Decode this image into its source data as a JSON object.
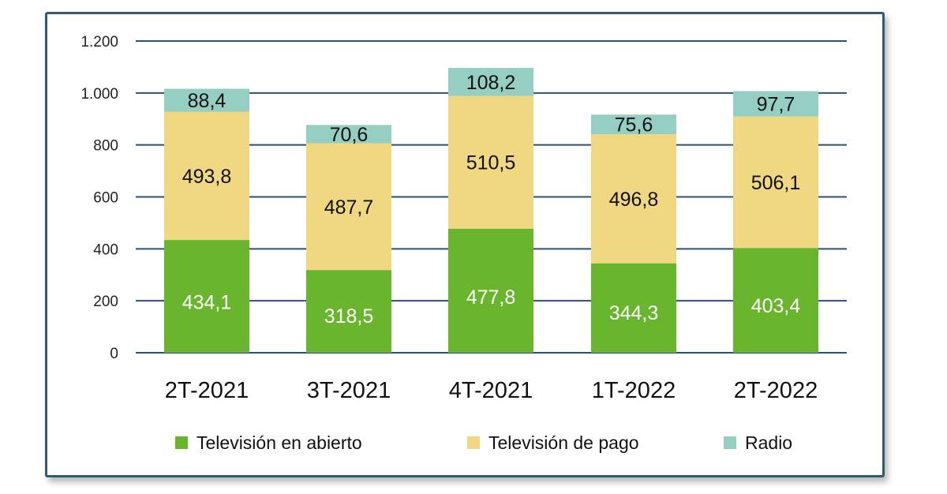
{
  "chart_data": {
    "type": "bar",
    "stacked": true,
    "categories": [
      "2T-2021",
      "3T-2021",
      "4T-2021",
      "1T-2022",
      "2T-2022"
    ],
    "series": [
      {
        "name": "Televisión en abierto",
        "values": [
          434.1,
          318.5,
          477.8,
          344.3,
          403.4
        ],
        "labels": [
          "434,1",
          "318,5",
          "477,8",
          "344,3",
          "403,4"
        ],
        "color": "#69b52d",
        "label_color": "#ffffff"
      },
      {
        "name": "Televisión de pago",
        "values": [
          493.8,
          487.7,
          510.5,
          496.8,
          506.1
        ],
        "labels": [
          "493,8",
          "487,7",
          "510,5",
          "496,8",
          "506,1"
        ],
        "color": "#f0d782",
        "label_color": "#111111"
      },
      {
        "name": "Radio",
        "values": [
          88.4,
          70.6,
          108.2,
          75.6,
          97.7
        ],
        "labels": [
          "88,4",
          "70,6",
          "108,2",
          "75,6",
          "97,7"
        ],
        "color": "#95cfc3",
        "label_color": "#111111"
      }
    ],
    "yticks": [
      {
        "value": 0,
        "label": "0"
      },
      {
        "value": 200,
        "label": "200"
      },
      {
        "value": 400,
        "label": "400"
      },
      {
        "value": 600,
        "label": "600"
      },
      {
        "value": 800,
        "label": "800"
      },
      {
        "value": 1000,
        "label": "1.000"
      },
      {
        "value": 1200,
        "label": "1.200"
      }
    ],
    "ylim": [
      0,
      1200
    ],
    "grid": true,
    "gridline_color": "#2b4f7e",
    "legend_position": "bottom"
  }
}
